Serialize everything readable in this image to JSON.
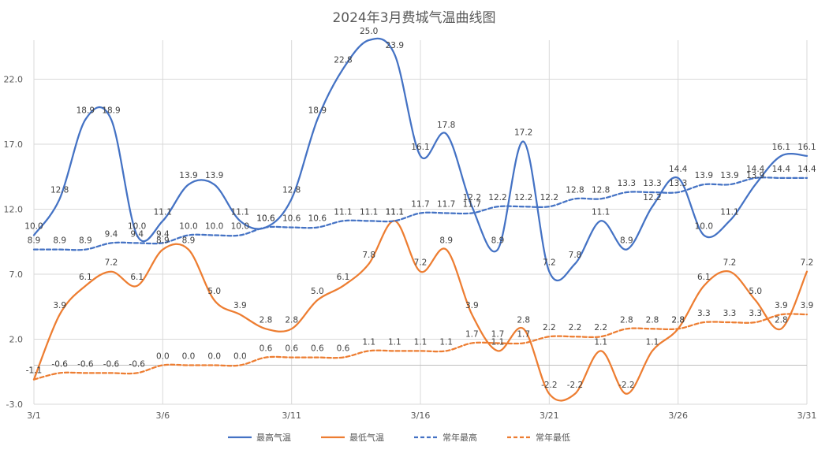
{
  "chart_data": {
    "type": "line",
    "title": "2024年3月费城气温曲线图",
    "ylim": [
      -3.0,
      25.0
    ],
    "y_ticks": [
      "-3.0",
      "2.0",
      "7.0",
      "12.0",
      "17.0",
      "22.0"
    ],
    "y_tick_values": [
      -3,
      2,
      7,
      12,
      17,
      22
    ],
    "x_ticks": [
      "3/1",
      "3/6",
      "3/11",
      "3/16",
      "3/21",
      "3/26",
      "3/31"
    ],
    "x_tick_days": [
      1,
      6,
      11,
      16,
      21,
      26,
      31
    ],
    "x": [
      1,
      2,
      3,
      4,
      5,
      6,
      7,
      8,
      9,
      10,
      11,
      12,
      13,
      14,
      15,
      16,
      17,
      18,
      19,
      20,
      21,
      22,
      23,
      24,
      25,
      26,
      27,
      28,
      29,
      30,
      31
    ],
    "grid": true,
    "legend_position": "bottom",
    "series": [
      {
        "name": "最高气温",
        "color": "#4472C4",
        "dash": false,
        "smooth": true,
        "label_position": "above",
        "values": [
          10.0,
          12.8,
          18.9,
          18.9,
          10.0,
          11.1,
          13.9,
          13.9,
          11.1,
          10.6,
          12.8,
          18.9,
          22.8,
          25.0,
          23.9,
          16.1,
          17.8,
          12.2,
          8.9,
          17.2,
          7.2,
          7.8,
          11.1,
          8.9,
          12.2,
          14.4,
          10.0,
          11.1,
          13.9,
          16.1,
          16.1
        ],
        "labels": [
          "10.0",
          "12.8",
          "18.9",
          "18.9",
          "10.0",
          "11.1",
          "13.9",
          "13.9",
          "11.1",
          "10.6",
          "12.8",
          "18.9",
          "22.8",
          "25.0",
          "23.9",
          "16.1",
          "17.8",
          "12.2",
          "8.9",
          "17.2",
          "7.2",
          "7.8",
          "11.1",
          "8.9",
          "12.2",
          "14.4",
          "10.0",
          "11.1",
          "13.9",
          "16.1",
          "16.1"
        ]
      },
      {
        "name": "最低气温",
        "color": "#ED7D31",
        "dash": false,
        "smooth": true,
        "label_position": "above",
        "values": [
          -1.1,
          3.9,
          6.1,
          7.2,
          6.1,
          8.9,
          8.9,
          5.0,
          3.9,
          2.8,
          2.8,
          5.0,
          6.1,
          7.8,
          11.1,
          7.2,
          8.9,
          3.9,
          1.1,
          2.8,
          -2.2,
          -2.2,
          1.1,
          -2.2,
          1.1,
          2.8,
          6.1,
          7.2,
          5.0,
          2.8,
          7.2
        ],
        "labels": [
          "-1.1",
          "3.9",
          "6.1",
          "7.2",
          "6.1",
          "8.9",
          "8.9",
          "5.0",
          "3.9",
          "2.8",
          "2.8",
          "5.0",
          "6.1",
          "7.8",
          "11.1",
          "7.2",
          "8.9",
          "3.9",
          "1.1",
          "2.8",
          "-2.2",
          "-2.2",
          "1.1",
          "-2.2",
          "1.1",
          "2.8",
          "6.1",
          "7.2",
          "5.0",
          "2.8",
          "7.2"
        ]
      },
      {
        "name": "常年最高",
        "color": "#4472C4",
        "dash": true,
        "smooth": true,
        "label_position": "above",
        "values": [
          8.9,
          8.9,
          8.9,
          9.4,
          9.4,
          9.4,
          10.0,
          10.0,
          10.0,
          10.6,
          10.6,
          10.6,
          11.1,
          11.1,
          11.1,
          11.7,
          11.7,
          11.7,
          12.2,
          12.2,
          12.2,
          12.8,
          12.8,
          13.3,
          13.3,
          13.3,
          13.9,
          13.9,
          14.4,
          14.4,
          14.4
        ],
        "labels": [
          "8.9",
          "8.9",
          "8.9",
          "9.4",
          "9.4",
          "9.4",
          "10.0",
          "10.0",
          "10.0",
          "10.6",
          "10.6",
          "10.6",
          "11.1",
          "11.1",
          "11.1",
          "11.7",
          "11.7",
          "11.7",
          "12.2",
          "12.2",
          "12.2",
          "12.8",
          "12.8",
          "13.3",
          "13.3",
          "13.3",
          "13.9",
          "13.9",
          "14.4",
          "14.4",
          "14.4"
        ]
      },
      {
        "name": "常年最低",
        "color": "#ED7D31",
        "dash": true,
        "smooth": true,
        "label_position": "above",
        "values": [
          -1.1,
          -0.6,
          -0.6,
          -0.6,
          -0.6,
          0.0,
          0.0,
          0.0,
          0.0,
          0.6,
          0.6,
          0.6,
          0.6,
          1.1,
          1.1,
          1.1,
          1.1,
          1.7,
          1.7,
          1.7,
          2.2,
          2.2,
          2.2,
          2.8,
          2.8,
          2.8,
          3.3,
          3.3,
          3.3,
          3.9,
          3.9
        ],
        "labels": [
          "-1.1",
          "-0.6",
          "-0.6",
          "-0.6",
          "-0.6",
          "0.0",
          "0.0",
          "0.0",
          "0.0",
          "0.6",
          "0.6",
          "0.6",
          "0.6",
          "1.1",
          "1.1",
          "1.1",
          "1.1",
          "1.7",
          "1.7",
          "1.7",
          "2.2",
          "2.2",
          "2.2",
          "2.8",
          "2.8",
          "2.8",
          "3.3",
          "3.3",
          "3.3",
          "3.9",
          "3.9"
        ]
      }
    ]
  }
}
